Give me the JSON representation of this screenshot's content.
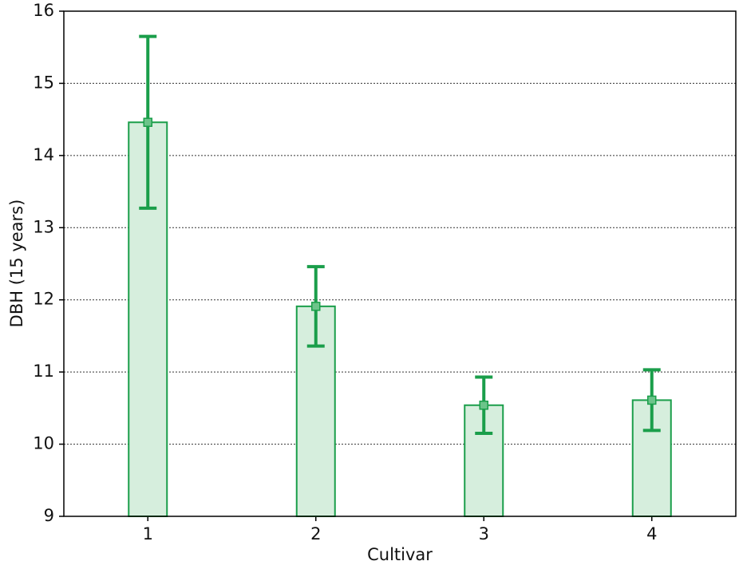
{
  "chart_data": {
    "type": "bar",
    "x_label": "Cultivar",
    "y_label": "DBH (15 years)",
    "categories": [
      "1",
      "2",
      "3",
      "4"
    ],
    "values": [
      14.46,
      11.91,
      10.54,
      10.61
    ],
    "errors": [
      1.19,
      0.55,
      0.39,
      0.42
    ],
    "color": "#1a9e4a",
    "fill": "#d6eedd",
    "marker_color": "#6cc48a",
    "ylim": [
      9,
      16
    ],
    "yticks": [
      9,
      10,
      11,
      12,
      13,
      14,
      15,
      16
    ],
    "grid": true
  }
}
